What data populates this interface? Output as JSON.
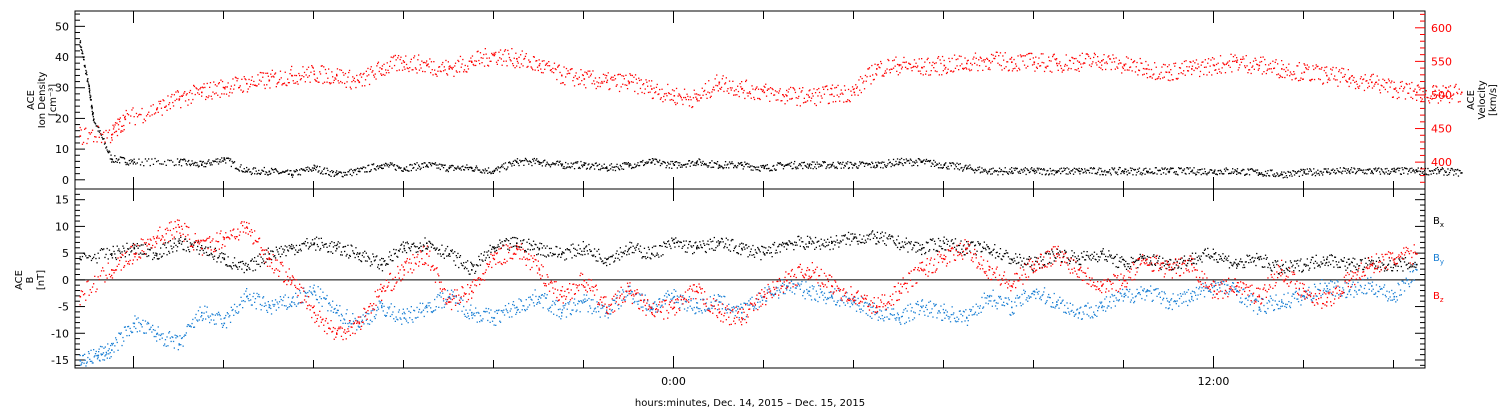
{
  "chart_data": [
    {
      "type": "scatter",
      "panel": "top",
      "title": "",
      "ylabel_left": [
        "ACE",
        "Ion Density",
        "[cm⁻³]"
      ],
      "ylabel_right": [
        "ACE",
        "Velocity",
        "[km/s]"
      ],
      "ylim_left": [
        -3,
        55
      ],
      "ylim_right": [
        360,
        625
      ],
      "yticks_left": [
        "0",
        "10",
        "20",
        "30",
        "40",
        "50"
      ],
      "yticks_right": [
        "400",
        "450",
        "500",
        "550",
        "600"
      ],
      "yticks_left_values": [
        0,
        10,
        20,
        30,
        40,
        50
      ],
      "yticks_right_values": [
        400,
        450,
        500,
        550,
        600
      ],
      "grid": false,
      "series": [
        {
          "axis": "left",
          "color": "#000000",
          "x": [
            -13.2,
            -13,
            -12.9,
            -12.5,
            -12,
            -11,
            -10.5,
            -10,
            -9.5,
            -9,
            -8.5,
            -8,
            -7.5,
            -7,
            -6.5,
            -6,
            -5.5,
            -5,
            -4.5,
            -4,
            -3.5,
            -3,
            -2.5,
            -2,
            -1.5,
            -1,
            -0.5,
            0,
            0.5,
            1,
            1.5,
            2,
            2.5,
            3,
            3.5,
            4,
            4.5,
            5,
            5.5,
            6,
            6.5,
            7,
            7.5,
            8,
            8.5,
            9,
            9.5,
            10,
            10.5,
            11,
            11.5,
            12,
            12.5,
            13,
            13.5,
            14,
            14.5,
            15,
            15.5,
            16,
            16.5,
            17,
            17.5
          ],
          "y": [
            45,
            30,
            20,
            7,
            6,
            6,
            5,
            7,
            3,
            3,
            2,
            4,
            2,
            3,
            5,
            4,
            5,
            4,
            4,
            3,
            6,
            6,
            5,
            5,
            4,
            5,
            6,
            5,
            6,
            5,
            5,
            4,
            5,
            5,
            5,
            5,
            5,
            6,
            6,
            5,
            4,
            3,
            3,
            3,
            3,
            3,
            3,
            3,
            3,
            3,
            3,
            3,
            3,
            2.5,
            2,
            2.5,
            3,
            3,
            3,
            3,
            3,
            3,
            2.5
          ]
        },
        {
          "axis": "right",
          "color": "#ff0000",
          "x": [
            -13.2,
            -12.5,
            -12.2,
            -11.5,
            -11,
            -10.5,
            -10,
            -9.5,
            -9,
            -8.5,
            -8,
            -7.5,
            -7,
            -6.5,
            -6,
            -5.5,
            -5,
            -4.5,
            -4,
            -3.5,
            -3,
            -2.5,
            -2,
            -1.5,
            -1,
            -0.5,
            0,
            0.5,
            1,
            1.5,
            2,
            2.5,
            3,
            3.5,
            4,
            4.5,
            5,
            5.5,
            6,
            6.5,
            7,
            7.5,
            8,
            8.5,
            9,
            9.5,
            10,
            10.5,
            11,
            11.5,
            12,
            12.5,
            13,
            13.5,
            14,
            14.5,
            15,
            15.5,
            16,
            16.5,
            17,
            17.5
          ],
          "y": [
            440,
            442,
            465,
            480,
            495,
            505,
            512,
            518,
            523,
            530,
            532,
            530,
            520,
            540,
            550,
            545,
            540,
            550,
            560,
            555,
            545,
            530,
            525,
            520,
            520,
            510,
            500,
            495,
            520,
            510,
            505,
            500,
            498,
            502,
            505,
            540,
            545,
            542,
            545,
            548,
            552,
            550,
            550,
            548,
            550,
            552,
            545,
            540,
            535,
            540,
            545,
            550,
            545,
            540,
            535,
            530,
            525,
            520,
            510,
            505,
            500,
            505
          ]
        }
      ]
    },
    {
      "type": "scatter",
      "panel": "bottom",
      "title": "",
      "ylabel": [
        "ACE",
        "B",
        "[nT]"
      ],
      "ylim": [
        -16.5,
        17
      ],
      "yticks": [
        "-15",
        "-10",
        "-5",
        "0",
        "5",
        "10",
        "15"
      ],
      "ytick_values": [
        -15,
        -10,
        -5,
        0,
        5,
        10,
        15
      ],
      "xlabel": "hours:minutes, Dec. 14, 2015 – Dec. 15, 2015",
      "xtick_labels": [
        "0:00",
        "12:00"
      ],
      "xtick_values": [
        0,
        12
      ],
      "xlim": [
        -13.3,
        16.7
      ],
      "grid": false,
      "legend": "right",
      "series": [
        {
          "name": "B",
          "sub": "x",
          "color": "#000000",
          "x": [
            -13.2,
            -12.5,
            -12,
            -11.5,
            -11,
            -10.5,
            -10,
            -9.5,
            -9,
            -8.5,
            -8,
            -7.5,
            -7,
            -6.5,
            -6,
            -5.5,
            -5,
            -4.5,
            -4,
            -3.5,
            -3,
            -2.5,
            -2,
            -1.5,
            -1,
            -0.5,
            0,
            0.5,
            1,
            1.5,
            2,
            2.5,
            3,
            3.5,
            4,
            4.5,
            5,
            5.5,
            6,
            6.5,
            7,
            7.5,
            8,
            8.5,
            9,
            9.5,
            10,
            10.5,
            11,
            11.5,
            12,
            12.5,
            13,
            13.5,
            14,
            14.5,
            15,
            15.5,
            16,
            16.5
          ],
          "y": [
            4,
            5,
            6,
            5,
            7,
            6,
            4,
            2,
            5,
            6,
            7,
            6,
            5,
            3,
            6,
            7,
            5,
            2,
            6,
            7,
            6,
            5,
            6,
            4,
            6,
            5,
            7,
            6,
            7,
            6,
            5,
            7,
            7,
            7,
            8,
            8,
            7,
            6,
            7,
            6,
            6,
            4,
            3,
            5,
            4,
            5,
            3,
            4,
            3,
            4,
            5,
            3,
            4,
            2,
            3,
            4,
            3,
            3,
            3,
            3
          ]
        },
        {
          "name": "B",
          "sub": "y",
          "color": "#1a7fd4",
          "x": [
            -13.2,
            -12.8,
            -12.5,
            -12,
            -11.5,
            -11,
            -10.5,
            -10,
            -9.5,
            -9,
            -8.5,
            -8,
            -7.5,
            -7,
            -6.5,
            -6,
            -5.5,
            -5,
            -4.5,
            -4,
            -3.5,
            -3,
            -2.5,
            -2,
            -1.5,
            -1,
            -0.5,
            0,
            0.5,
            1,
            1.5,
            2,
            2.5,
            3,
            3.5,
            4,
            4.5,
            5,
            5.5,
            6,
            6.5,
            7,
            7.5,
            8,
            8.5,
            9,
            9.5,
            10,
            10.5,
            11,
            11.5,
            12,
            12.5,
            13,
            13.5,
            14,
            14.5,
            15,
            15.5,
            16,
            16.5
          ],
          "y": [
            -15,
            -14,
            -13,
            -8,
            -10,
            -12,
            -6,
            -8,
            -3,
            -5,
            -4,
            -2,
            -6,
            -8,
            -5,
            -7,
            -5,
            -3,
            -6,
            -7,
            -5,
            -3,
            -6,
            -4,
            -6,
            -2,
            -5,
            -3,
            -5,
            -4,
            -6,
            -3,
            -1,
            -2,
            -3,
            -4,
            -6,
            -7,
            -5,
            -6,
            -7,
            -3,
            -5,
            -2,
            -4,
            -6,
            -5,
            -3,
            -2,
            -4,
            -3,
            -1,
            -2,
            -5,
            -4,
            -3,
            -1,
            -2,
            -1,
            -3,
            2
          ]
        },
        {
          "name": "B",
          "sub": "z",
          "color": "#ff0000",
          "x": [
            -13.2,
            -12.5,
            -12,
            -11.5,
            -11,
            -10.5,
            -10,
            -9.5,
            -9,
            -8.5,
            -8,
            -7.5,
            -7,
            -6.5,
            -6,
            -5.5,
            -5,
            -4.5,
            -4,
            -3.5,
            -3,
            -2.5,
            -2,
            -1.5,
            -1,
            -0.5,
            0,
            0.5,
            1,
            1.5,
            2,
            2.5,
            3,
            3.5,
            4,
            4.5,
            5,
            5.5,
            6,
            6.5,
            7,
            7.5,
            8,
            8.5,
            9,
            9.5,
            10,
            10.5,
            11,
            11.5,
            12,
            12.5,
            13,
            13.5,
            14,
            14.5,
            15,
            15.5,
            16,
            16.5
          ],
          "y": [
            -3,
            2,
            5,
            8,
            10,
            6,
            8,
            10,
            4,
            0,
            -6,
            -10,
            -8,
            -2,
            2,
            5,
            -4,
            -2,
            4,
            6,
            2,
            -3,
            0,
            -5,
            -2,
            -6,
            -5,
            -2,
            -6,
            -7,
            -3,
            0,
            2,
            -1,
            -3,
            -5,
            -2,
            2,
            4,
            6,
            2,
            -1,
            3,
            5,
            2,
            -1,
            0,
            4,
            2,
            3,
            -2,
            -1,
            -3,
            2,
            -2,
            -4,
            0,
            3,
            4,
            5
          ]
        }
      ]
    }
  ]
}
